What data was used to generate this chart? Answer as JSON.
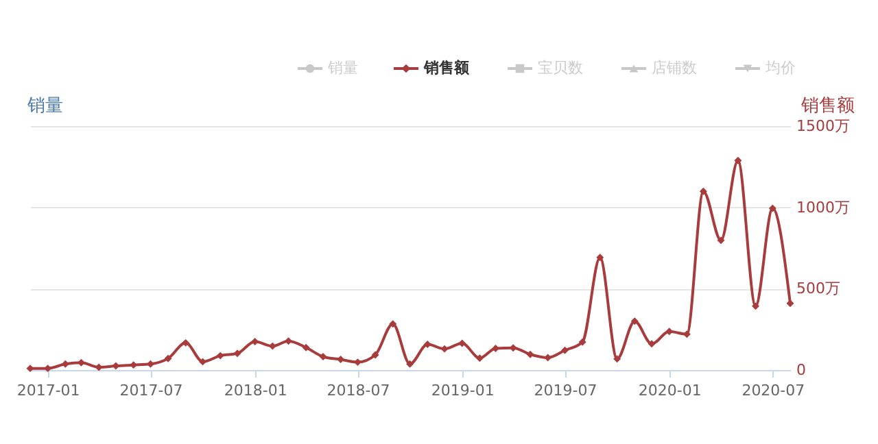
{
  "chart_data": {
    "type": "line",
    "x": [
      "2016-12",
      "2017-01",
      "2017-02",
      "2017-03",
      "2017-04",
      "2017-05",
      "2017-06",
      "2017-07",
      "2017-08",
      "2017-09",
      "2017-10",
      "2017-11",
      "2017-12",
      "2018-01",
      "2018-02",
      "2018-03",
      "2018-04",
      "2018-05",
      "2018-06",
      "2018-07",
      "2018-08",
      "2018-09",
      "2018-10",
      "2018-11",
      "2018-12",
      "2019-01",
      "2019-02",
      "2019-03",
      "2019-04",
      "2019-05",
      "2019-06",
      "2019-07",
      "2019-08",
      "2019-09",
      "2019-10",
      "2019-11",
      "2019-12",
      "2020-01",
      "2020-02",
      "2020-03",
      "2020-04",
      "2020-05",
      "2020-06",
      "2020-07",
      "2020-08"
    ],
    "series": [
      {
        "name": "销量",
        "color": "#c8c8c8",
        "marker": "circle",
        "values": [
          null,
          null,
          null,
          null,
          null,
          null,
          null,
          null,
          null,
          null,
          null,
          null,
          null,
          null,
          null,
          null,
          null,
          null,
          null,
          null,
          null,
          null,
          null,
          null,
          null,
          null,
          null,
          null,
          null,
          null,
          null,
          null,
          null,
          null,
          null,
          null,
          null,
          null,
          null,
          null,
          null,
          null,
          null,
          null,
          null
        ]
      },
      {
        "name": "销售额",
        "color": "#a83c3c",
        "marker": "diamond",
        "axis": "y2",
        "values": [
          10,
          10,
          37,
          45,
          17,
          25,
          31,
          37,
          71,
          167,
          51,
          88,
          102,
          175,
          147,
          178,
          138,
          82,
          65,
          48,
          93,
          283,
          37,
          158,
          130,
          164,
          73,
          133,
          136,
          96,
          76,
          121,
          172,
          692,
          68,
          300,
          161,
          237,
          220,
          1099,
          797,
          1288,
          393,
          994,
          410
        ]
      },
      {
        "name": "宝贝数",
        "color": "#c8c8c8",
        "marker": "square",
        "values": [
          null,
          null,
          null,
          null,
          null,
          null,
          null,
          null,
          null,
          null,
          null,
          null,
          null,
          null,
          null,
          null,
          null,
          null,
          null,
          null,
          null,
          null,
          null,
          null,
          null,
          null,
          null,
          null,
          null,
          null,
          null,
          null,
          null,
          null,
          null,
          null,
          null,
          null,
          null,
          null,
          null,
          null,
          null,
          null,
          null
        ]
      },
      {
        "name": "店铺数",
        "color": "#c8c8c8",
        "marker": "triangle",
        "values": [
          null,
          null,
          null,
          null,
          null,
          null,
          null,
          null,
          null,
          null,
          null,
          null,
          null,
          null,
          null,
          null,
          null,
          null,
          null,
          null,
          null,
          null,
          null,
          null,
          null,
          null,
          null,
          null,
          null,
          null,
          null,
          null,
          null,
          null,
          null,
          null,
          null,
          null,
          null,
          null,
          null,
          null,
          null,
          null,
          null
        ]
      },
      {
        "name": "均价",
        "color": "#c8c8c8",
        "marker": "triangle-down",
        "values": [
          null,
          null,
          null,
          null,
          null,
          null,
          null,
          null,
          null,
          null,
          null,
          null,
          null,
          null,
          null,
          null,
          null,
          null,
          null,
          null,
          null,
          null,
          null,
          null,
          null,
          null,
          null,
          null,
          null,
          null,
          null,
          null,
          null,
          null,
          null,
          null,
          null,
          null,
          null,
          null,
          null,
          null,
          null,
          null,
          null
        ]
      }
    ],
    "ylabel": "销量",
    "y2label": "销售额",
    "y2lim": [
      0,
      1500
    ],
    "y2ticks": [
      0,
      {
        "value": 500,
        "label": "500万"
      },
      {
        "value": 1000,
        "label": "1000万"
      },
      {
        "value": 1500,
        "label": "1500万"
      }
    ],
    "xlim": [
      "2016-12",
      "2020-08"
    ],
    "xticks": [
      "2017-01",
      "2017-07",
      "2018-01",
      "2018-07",
      "2019-01",
      "2019-07",
      "2020-01",
      "2020-07"
    ],
    "grid": "y",
    "legend": "top",
    "line_style": "solid"
  }
}
